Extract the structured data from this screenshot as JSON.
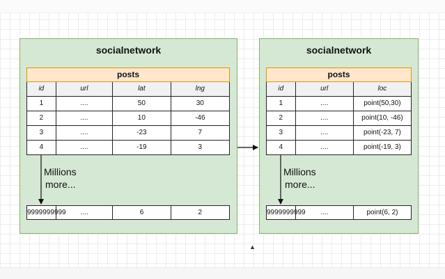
{
  "left": {
    "title": "socialnetwork",
    "table_name": "posts",
    "columns": [
      "id",
      "url",
      "lat",
      "lng"
    ],
    "rows": [
      [
        "1",
        "....",
        "50",
        "30"
      ],
      [
        "2",
        "....",
        "10",
        "-46"
      ],
      [
        "3",
        "....",
        "-23",
        "7"
      ],
      [
        "4",
        "....",
        "-19",
        "3"
      ]
    ],
    "more_line1": "Millions",
    "more_line2": "more...",
    "last_row": [
      "9999999999",
      "....",
      "6",
      "2"
    ]
  },
  "right": {
    "title": "socialnetwork",
    "table_name": "posts",
    "columns": [
      "id",
      "url",
      "loc"
    ],
    "rows": [
      [
        "1",
        "....",
        "point(50,30)"
      ],
      [
        "2",
        "....",
        "point(10, -46)"
      ],
      [
        "3",
        "....",
        "point(-23, 7)"
      ],
      [
        "4",
        "....",
        "point(-19, 3)"
      ]
    ],
    "more_line1": "Millions",
    "more_line2": "more...",
    "last_row": [
      "9999999999",
      "....",
      "point(6, 2)"
    ]
  }
}
